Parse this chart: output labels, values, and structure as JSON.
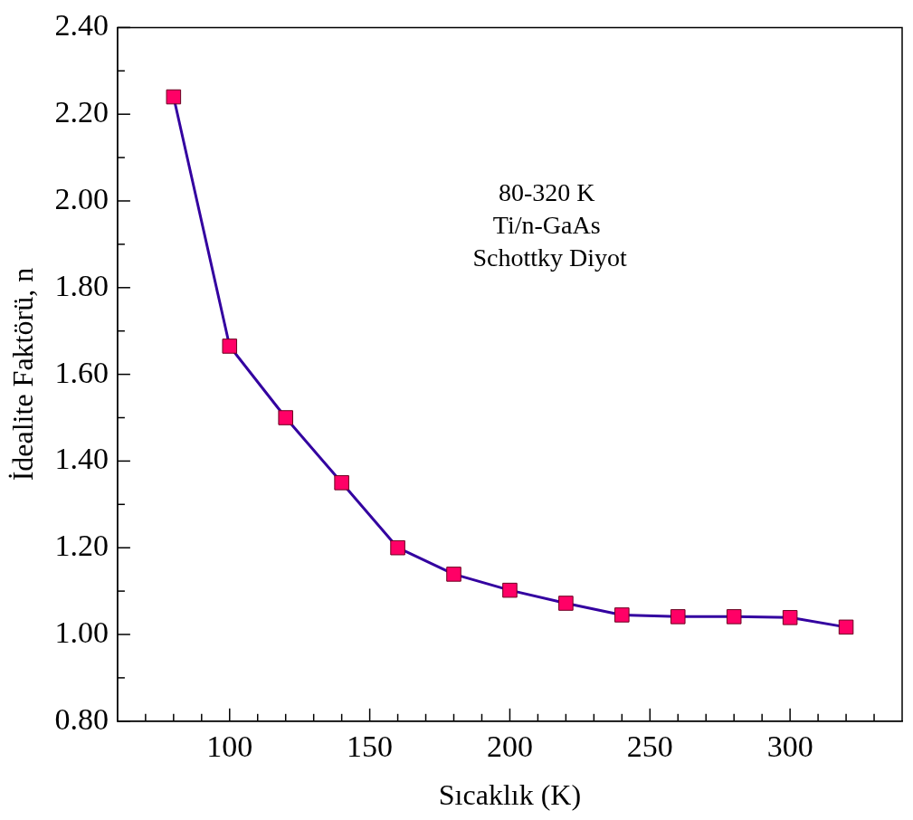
{
  "chart_data": {
    "type": "line",
    "xlabel": "Sıcaklık (K)",
    "ylabel": "İdealite Faktörü, n",
    "annotations": [
      "80-320 K",
      "Ti/n-GaAs",
      " Schottky Diyot"
    ],
    "x": [
      80,
      100,
      120,
      140,
      160,
      180,
      200,
      220,
      240,
      260,
      280,
      300,
      320
    ],
    "series": [
      {
        "color": "#3300a0",
        "colors": [
          "#ff0066",
          "#ff0066",
          "#ff0066",
          "#ff0066",
          "#ff0066",
          "#ff0066",
          "#ff0066",
          "#ff0066",
          "#ff0066",
          "#ff0066",
          "#ff0066",
          "#ff0066",
          "#ff0066"
        ],
        "values": [
          2.24,
          1.665,
          1.5,
          1.35,
          1.2,
          1.139,
          1.102,
          1.072,
          1.045,
          1.041,
          1.041,
          1.039,
          1.017
        ]
      }
    ],
    "marker": "square",
    "line_style": "solid",
    "legend": false,
    "xlim": [
      60,
      340
    ],
    "xticks": [
      {
        "value": 70,
        "label": null
      },
      {
        "value": 80,
        "label": null
      },
      {
        "value": 90,
        "label": null
      },
      100,
      {
        "value": 110,
        "label": null
      },
      {
        "value": 120,
        "label": null
      },
      {
        "value": 130,
        "label": null
      },
      {
        "value": 140,
        "label": null
      },
      150,
      {
        "value": 160,
        "label": null
      },
      {
        "value": 170,
        "label": null
      },
      {
        "value": 180,
        "label": null
      },
      {
        "value": 190,
        "label": null
      },
      200,
      {
        "value": 210,
        "label": null
      },
      {
        "value": 220,
        "label": null
      },
      {
        "value": 230,
        "label": null
      },
      {
        "value": 240,
        "label": null
      },
      250,
      {
        "value": 260,
        "label": null
      },
      {
        "value": 270,
        "label": null
      },
      {
        "value": 280,
        "label": null
      },
      {
        "value": 290,
        "label": null
      },
      300,
      {
        "value": 310,
        "label": null
      },
      {
        "value": 320,
        "label": null
      },
      {
        "value": 330,
        "label": null
      }
    ],
    "ylim": [
      0.8,
      2.4
    ],
    "yticks": [
      {
        "value": 0.8,
        "label": "0.80"
      },
      {
        "value": 0.9,
        "label": null
      },
      {
        "value": 1.0,
        "label": "1.00"
      },
      {
        "value": 1.1,
        "label": null
      },
      {
        "value": 1.2,
        "label": "1.20"
      },
      {
        "value": 1.3,
        "label": null
      },
      {
        "value": 1.4,
        "label": "1.40"
      },
      {
        "value": 1.5,
        "label": null
      },
      {
        "value": 1.6,
        "label": "1.60"
      },
      {
        "value": 1.7,
        "label": null
      },
      {
        "value": 1.8,
        "label": "1.80"
      },
      {
        "value": 1.9,
        "label": null
      },
      {
        "value": 2.0,
        "label": "2.00"
      },
      {
        "value": 2.1,
        "label": null
      },
      {
        "value": 2.2,
        "label": "2.20"
      },
      {
        "value": 2.3,
        "label": null
      },
      {
        "value": 2.4,
        "label": "2.40"
      }
    ]
  }
}
